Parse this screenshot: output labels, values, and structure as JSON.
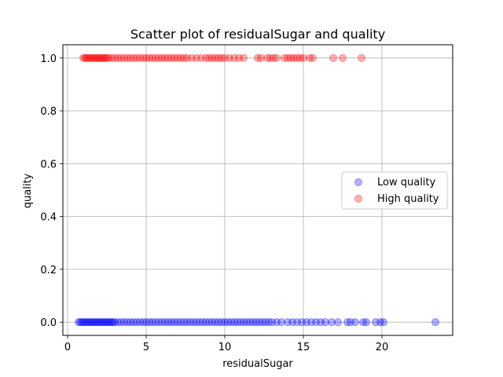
{
  "chart_data": {
    "type": "scatter",
    "title": "Scatter plot of residualSugar and quality",
    "xlabel": "residualSugar",
    "ylabel": "quality",
    "xlim": [
      -0.3,
      24.5
    ],
    "ylim": [
      -0.05,
      1.05
    ],
    "xticks": [
      0,
      5,
      10,
      15,
      20
    ],
    "yticks": [
      0.0,
      0.2,
      0.4,
      0.6,
      0.8,
      1.0
    ],
    "ytick_labels": [
      "0.0",
      "0.2",
      "0.4",
      "0.6",
      "0.8",
      "1.0"
    ],
    "grid": true,
    "legend_position": "center-right",
    "series": [
      {
        "name": "Low quality",
        "color": "#0000ff",
        "y": 0,
        "x": [
          0.7,
          0.8,
          0.9,
          1.0,
          1.1,
          1.2,
          1.3,
          1.4,
          1.5,
          1.6,
          1.7,
          1.8,
          1.9,
          2.0,
          2.1,
          2.2,
          2.3,
          2.4,
          2.5,
          2.6,
          2.7,
          2.8,
          2.9,
          3.0,
          3.2,
          3.4,
          3.6,
          3.8,
          4.0,
          4.2,
          4.4,
          4.6,
          4.8,
          5.0,
          5.2,
          5.4,
          5.6,
          5.8,
          6.0,
          6.2,
          6.4,
          6.6,
          6.8,
          7.0,
          7.2,
          7.4,
          7.6,
          7.8,
          8.0,
          8.2,
          8.4,
          8.6,
          8.8,
          9.0,
          9.2,
          9.4,
          9.6,
          9.8,
          10.0,
          10.2,
          10.4,
          10.6,
          10.8,
          11.0,
          11.2,
          11.4,
          11.6,
          11.8,
          12.0,
          12.2,
          12.4,
          12.6,
          12.8,
          13.0,
          13.3,
          13.6,
          14.0,
          14.3,
          14.6,
          14.9,
          15.2,
          15.5,
          15.8,
          16.1,
          16.4,
          16.8,
          17.2,
          17.8,
          18.0,
          18.3,
          18.8,
          19.0,
          19.6,
          19.9,
          20.1,
          23.4
        ]
      },
      {
        "name": "High quality",
        "color": "#ff0000",
        "y": 1,
        "x": [
          1.0,
          1.1,
          1.2,
          1.3,
          1.4,
          1.5,
          1.6,
          1.7,
          1.8,
          1.9,
          2.0,
          2.1,
          2.2,
          2.3,
          2.4,
          2.5,
          2.6,
          2.8,
          3.0,
          3.2,
          3.4,
          3.6,
          3.8,
          4.0,
          4.2,
          4.4,
          4.6,
          4.8,
          5.0,
          5.2,
          5.4,
          5.6,
          5.8,
          6.0,
          6.2,
          6.4,
          6.6,
          6.8,
          7.0,
          7.2,
          7.4,
          7.6,
          7.9,
          8.2,
          8.5,
          8.8,
          9.0,
          9.2,
          9.4,
          9.6,
          9.8,
          10.0,
          10.3,
          10.6,
          10.9,
          11.2,
          12.1,
          12.3,
          12.7,
          12.9,
          13.1,
          13.3,
          13.8,
          14.0,
          14.2,
          14.4,
          14.6,
          14.8,
          15.0,
          15.4,
          15.6,
          16.9,
          17.5,
          18.7
        ]
      }
    ]
  }
}
